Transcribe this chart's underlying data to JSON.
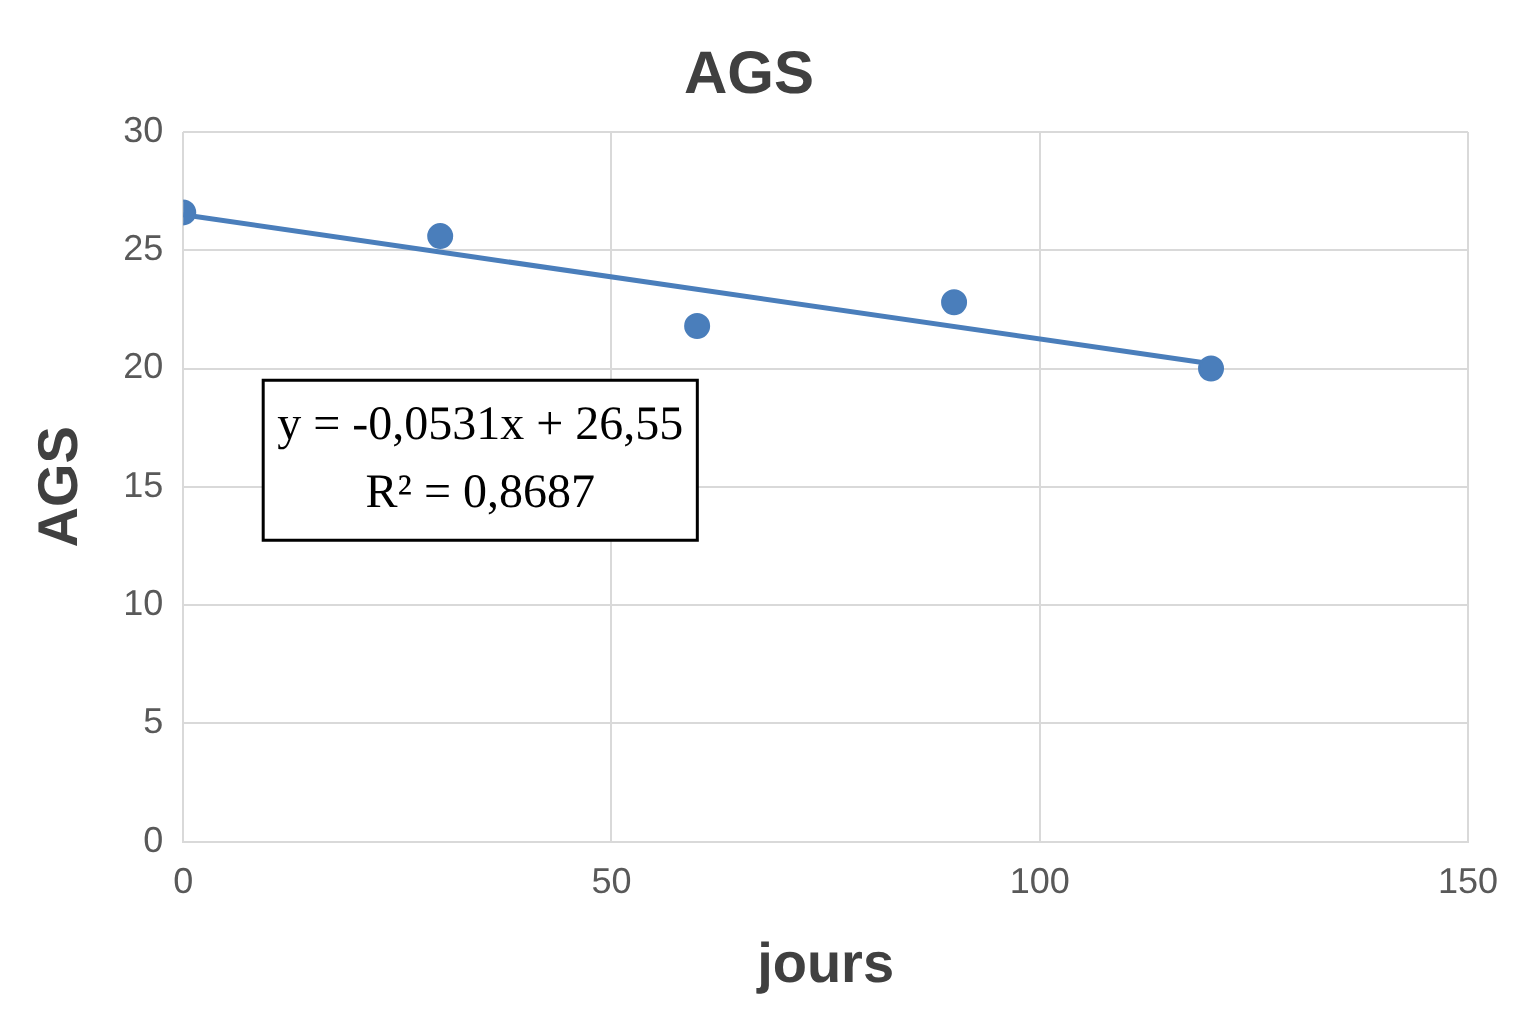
{
  "chart_data": {
    "type": "scatter",
    "title": "AGS",
    "xlabel": "jours",
    "ylabel": "AGS",
    "xlim": [
      0,
      150
    ],
    "xticks": [
      0,
      50,
      100,
      150
    ],
    "ylim": [
      0,
      30
    ],
    "yticks": [
      0,
      5,
      10,
      15,
      20,
      25,
      30
    ],
    "grid": true,
    "legend": false,
    "marker": "circle",
    "series": [
      {
        "color": "#4a7ebb",
        "x": [
          0,
          30,
          60,
          90,
          120
        ],
        "values": [
          26.6,
          25.6,
          21.8,
          22.8,
          20.0
        ]
      },
      {
        "type": "line",
        "color": "#4a7ebb",
        "marker": "none",
        "line_style": "solid",
        "x": [
          0,
          120
        ],
        "values": [
          26.5,
          20.2
        ]
      }
    ],
    "annotations": [
      "y = -0,0531x + 26,55",
      "R² = 0,8687"
    ]
  }
}
